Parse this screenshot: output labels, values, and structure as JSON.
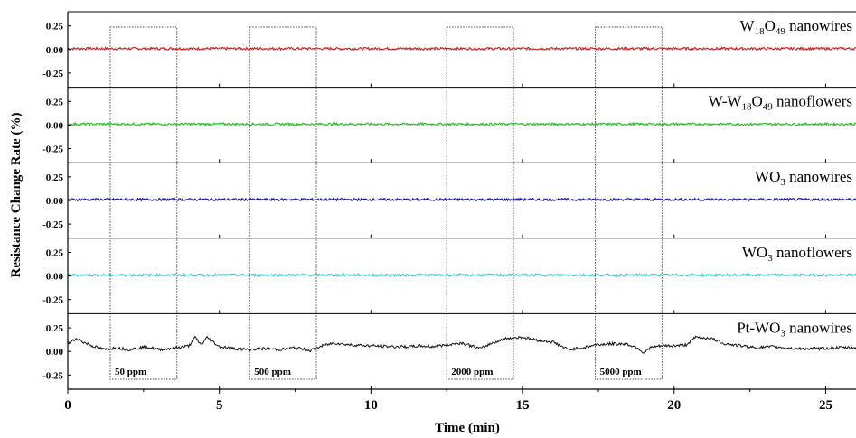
{
  "chart_data": {
    "type": "line",
    "xlabel": "Time (min)",
    "ylabel": "Resistance Change Rate (%)",
    "xlim": [
      0,
      26
    ],
    "x_ticks": [
      "0",
      "5",
      "10",
      "15",
      "20",
      "25"
    ],
    "x_tick_values": [
      0,
      5,
      10,
      15,
      20,
      25
    ],
    "ylim": [
      -0.4,
      0.4
    ],
    "y_tick_values": [
      0.25,
      0,
      -0.25
    ],
    "y_ticks": [
      "0.25",
      "0.00",
      "-0.25"
    ],
    "grid": false,
    "exposures": [
      {
        "label": "50 ppm",
        "start": 1.4,
        "end": 3.6
      },
      {
        "label": "500 ppm",
        "start": 6.0,
        "end": 8.2
      },
      {
        "label": "2000 ppm",
        "start": 12.5,
        "end": 14.7
      },
      {
        "label": "5000 ppm",
        "start": 17.4,
        "end": 19.6
      }
    ],
    "series": [
      {
        "label_parts": [
          [
            "W",
            "n"
          ],
          [
            "18",
            "s"
          ],
          [
            "O",
            "n"
          ],
          [
            "49",
            "s"
          ],
          [
            " nanowires",
            "n"
          ]
        ],
        "color": "#d42020",
        "x": [
          0,
          26
        ],
        "y": [
          0.01,
          0.01
        ]
      },
      {
        "label_parts": [
          [
            "W-W",
            "n"
          ],
          [
            "18",
            "s"
          ],
          [
            "O",
            "n"
          ],
          [
            "49",
            "s"
          ],
          [
            " nanoflowers",
            "n"
          ]
        ],
        "color": "#22c322",
        "x": [
          0,
          26
        ],
        "y": [
          0.01,
          0.01
        ]
      },
      {
        "label_parts": [
          [
            "WO",
            "n"
          ],
          [
            "3",
            "s"
          ],
          [
            " nanowires",
            "n"
          ]
        ],
        "color": "#1a1aa8",
        "x": [
          0,
          26
        ],
        "y": [
          0.01,
          0.01
        ]
      },
      {
        "label_parts": [
          [
            "WO",
            "n"
          ],
          [
            "3",
            "s"
          ],
          [
            " nanoflowers",
            "n"
          ]
        ],
        "color": "#2cc8d8",
        "x": [
          0,
          26
        ],
        "y": [
          0.01,
          0.01
        ]
      },
      {
        "label_parts": [
          [
            "Pt-WO",
            "n"
          ],
          [
            "3",
            "s"
          ],
          [
            " nanowires",
            "n"
          ]
        ],
        "color": "#111111",
        "x": [
          0,
          0.3,
          0.5,
          0.8,
          1.2,
          1.6,
          2.0,
          2.6,
          3.0,
          3.6,
          4.0,
          4.2,
          4.4,
          4.6,
          5.0,
          5.5,
          6.0,
          6.5,
          7.0,
          7.5,
          8.0,
          8.4,
          8.8,
          9.3,
          10.0,
          10.8,
          11.3,
          11.6,
          12.0,
          12.5,
          13.0,
          13.6,
          14.0,
          14.5,
          15.0,
          15.5,
          16.0,
          16.5,
          17.0,
          17.4,
          17.8,
          18.4,
          18.8,
          19.0,
          19.2,
          19.6,
          20.0,
          20.4,
          20.7,
          21.2,
          21.7,
          22.2,
          22.7,
          23.3,
          24.0,
          24.8,
          25.5,
          26.0
        ],
        "y": [
          0.08,
          0.14,
          0.1,
          0.06,
          0.02,
          0.04,
          0.02,
          0.05,
          0.02,
          0.04,
          0.06,
          0.15,
          0.07,
          0.15,
          0.05,
          0.03,
          0.02,
          0.03,
          0.02,
          0.04,
          0.01,
          0.06,
          0.09,
          0.07,
          0.06,
          0.05,
          0.05,
          0.06,
          0.05,
          0.07,
          0.09,
          0.03,
          0.09,
          0.14,
          0.15,
          0.12,
          0.1,
          0.02,
          0.04,
          0.07,
          0.08,
          0.08,
          0.04,
          -0.02,
          0.04,
          0.06,
          0.06,
          0.07,
          0.15,
          0.14,
          0.08,
          0.06,
          0.04,
          0.05,
          0.03,
          0.03,
          0.04,
          0.04
        ]
      }
    ]
  }
}
